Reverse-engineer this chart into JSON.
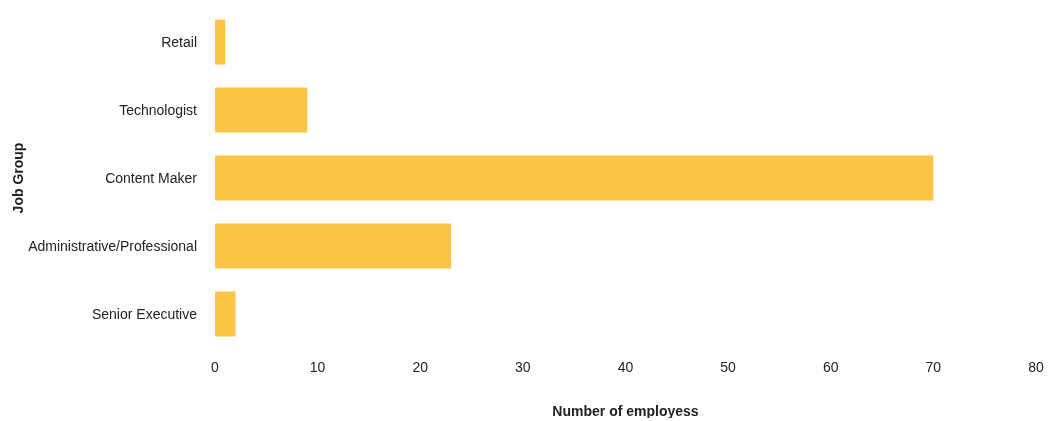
{
  "chart_data": {
    "type": "bar",
    "orientation": "horizontal",
    "categories": [
      "Retail",
      "Technologist",
      "Content Maker",
      "Administrative/Professional",
      "Senior Executive"
    ],
    "values": [
      1,
      9,
      70,
      23,
      2
    ],
    "color": "#fec446",
    "xlim": [
      0,
      80
    ],
    "xticks": [
      0,
      10,
      20,
      30,
      40,
      50,
      60,
      70,
      80
    ],
    "xlabel": "Number of employess",
    "ylabel": "Job Group",
    "grid": false
  }
}
